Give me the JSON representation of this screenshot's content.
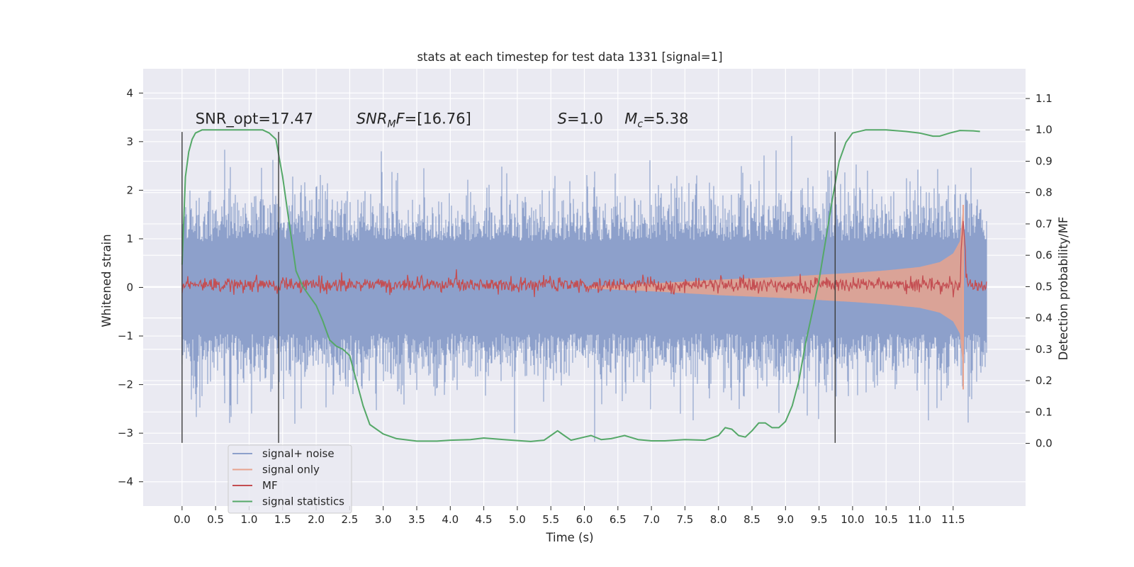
{
  "chart_data": {
    "type": "line",
    "title": "stats at each timestep for test data 1331 [signal=1]",
    "xlabel": "Time (s)",
    "ylabel_left": "Whitened strain",
    "ylabel_right": "Detection probability/MF",
    "xlim": [
      -0.58,
      12.58
    ],
    "ylim_left": [
      -4.5,
      4.5
    ],
    "ylim_right": [
      -0.2,
      1.195
    ],
    "x_ticks": [
      "0.0",
      "0.5",
      "1.0",
      "1.5",
      "2.0",
      "2.5",
      "3.0",
      "3.5",
      "4.0",
      "4.5",
      "5.0",
      "5.5",
      "6.0",
      "6.5",
      "7.0",
      "7.5",
      "8.0",
      "8.5",
      "9.0",
      "9.5",
      "10.0",
      "10.5",
      "11.0",
      "11.5"
    ],
    "y_ticks_left": [
      "4",
      "3",
      "2",
      "1",
      "0",
      "−1",
      "−2",
      "−3",
      "−4"
    ],
    "y_ticks_right": [
      "1.1",
      "1.0",
      "0.9",
      "0.8",
      "0.7",
      "0.6",
      "0.5",
      "0.4",
      "0.3",
      "0.2",
      "0.1",
      "0.0"
    ],
    "grid": true,
    "legend_placement": "lower-left",
    "duration_s": 12.0,
    "annotations": [
      {
        "name": "snr-opt",
        "plain": "SNR_opt=17.47",
        "x": 0.2,
        "y_right": 1.02
      },
      {
        "name": "snr-mf",
        "pre": "SNR",
        "sub": "M",
        "mid": "F",
        "post": "=[16.76]",
        "x": 2.6,
        "y_right": 1.02
      },
      {
        "name": "s-value",
        "ital": "S",
        "post": "=1.0",
        "x": 5.6,
        "y_right": 1.02
      },
      {
        "name": "mc-value",
        "ital": "M",
        "sub": "c",
        "post": "=5.38",
        "x": 6.6,
        "y_right": 1.02
      }
    ],
    "vertical_markers": [
      {
        "x": 0.0,
        "y_range": [
          -3.2,
          3.2
        ]
      },
      {
        "x": 1.44,
        "y_range": [
          -3.2,
          3.2
        ]
      },
      {
        "x": 9.74,
        "y_range": [
          -3.2,
          3.2
        ]
      }
    ],
    "series": [
      {
        "name": "signal+ noise",
        "color": "#8da0cb",
        "kind": "noise",
        "approx_abs_max": 4.1
      },
      {
        "name": "signal only",
        "color": "#e8a38e",
        "kind": "chirp",
        "envelope": {
          "x": [
            6.0,
            7.0,
            8.0,
            9.0,
            10.0,
            10.5,
            11.0,
            11.3,
            11.5,
            11.6,
            11.65,
            11.66
          ],
          "y": [
            0.02,
            0.08,
            0.16,
            0.22,
            0.3,
            0.35,
            0.42,
            0.52,
            0.7,
            0.95,
            1.7,
            0.0
          ]
        }
      },
      {
        "name": "MF",
        "color": "#c44e52",
        "kind": "mf",
        "baseline_right": 0.505,
        "jitter": 0.012,
        "peak_x": 11.65,
        "peak_right": 0.71
      },
      {
        "name": "signal statistics",
        "color": "#55a868",
        "kind": "line",
        "x": [
          0.0,
          0.05,
          0.1,
          0.15,
          0.2,
          0.3,
          0.5,
          0.8,
          1.0,
          1.2,
          1.3,
          1.4,
          1.5,
          1.6,
          1.7,
          1.8,
          1.9,
          2.0,
          2.1,
          2.2,
          2.3,
          2.4,
          2.5,
          2.6,
          2.7,
          2.8,
          3.0,
          3.2,
          3.5,
          3.8,
          4.0,
          4.3,
          4.5,
          4.8,
          5.0,
          5.2,
          5.4,
          5.5,
          5.6,
          5.7,
          5.8,
          6.0,
          6.1,
          6.25,
          6.4,
          6.5,
          6.6,
          6.8,
          7.0,
          7.2,
          7.5,
          7.8,
          8.0,
          8.1,
          8.2,
          8.3,
          8.4,
          8.5,
          8.6,
          8.7,
          8.8,
          8.9,
          9.0,
          9.1,
          9.2,
          9.3,
          9.4,
          9.5,
          9.6,
          9.7,
          9.8,
          9.9,
          10.0,
          10.2,
          10.5,
          10.8,
          11.0,
          11.2,
          11.3,
          11.45,
          11.6,
          11.8,
          11.9
        ],
        "y": [
          0.57,
          0.85,
          0.93,
          0.97,
          0.99,
          1.0,
          1.0,
          1.0,
          1.0,
          1.0,
          0.99,
          0.97,
          0.85,
          0.7,
          0.55,
          0.5,
          0.47,
          0.44,
          0.39,
          0.33,
          0.31,
          0.3,
          0.28,
          0.2,
          0.12,
          0.06,
          0.03,
          0.015,
          0.007,
          0.007,
          0.01,
          0.012,
          0.017,
          0.012,
          0.009,
          0.006,
          0.01,
          0.025,
          0.04,
          0.025,
          0.01,
          0.02,
          0.025,
          0.012,
          0.015,
          0.02,
          0.025,
          0.012,
          0.008,
          0.008,
          0.012,
          0.01,
          0.025,
          0.05,
          0.045,
          0.025,
          0.02,
          0.04,
          0.065,
          0.065,
          0.05,
          0.05,
          0.07,
          0.12,
          0.2,
          0.32,
          0.42,
          0.52,
          0.65,
          0.78,
          0.9,
          0.96,
          0.99,
          1.0,
          1.0,
          0.995,
          0.99,
          0.98,
          0.98,
          0.99,
          0.998,
          0.997,
          0.995
        ]
      }
    ]
  }
}
